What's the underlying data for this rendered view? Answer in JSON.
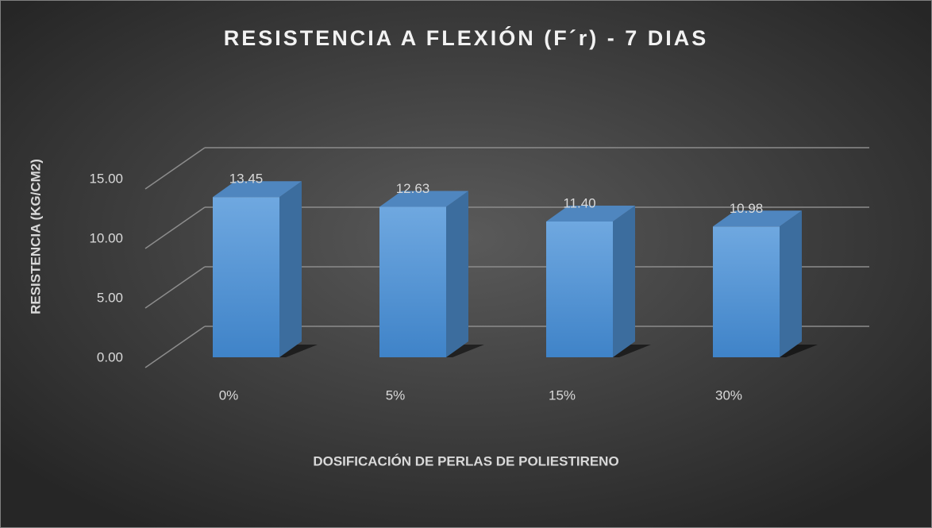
{
  "chart_data": {
    "type": "bar3d",
    "title": "RESISTENCIA A FLEXIÓN (F´r) - 7 DIAS",
    "x_label": "DOSIFICACIÓN DE PERLAS DE POLIESTIRENO",
    "y_label": "RESISTENCIA (KG/CM2)",
    "categories": [
      "0%",
      "5%",
      "15%",
      "30%"
    ],
    "values": [
      13.45,
      12.63,
      11.4,
      10.98
    ],
    "value_labels": [
      "13.45",
      "12.63",
      "11.40",
      "10.98"
    ],
    "color": "#5b9bd5",
    "ylim": [
      0,
      15
    ],
    "yticks": [
      {
        "value": 0,
        "label": "0.00"
      },
      {
        "value": 5,
        "label": "5.00"
      },
      {
        "value": 10,
        "label": "10.00"
      },
      {
        "value": 15,
        "label": "15.00"
      }
    ],
    "grid": true
  }
}
